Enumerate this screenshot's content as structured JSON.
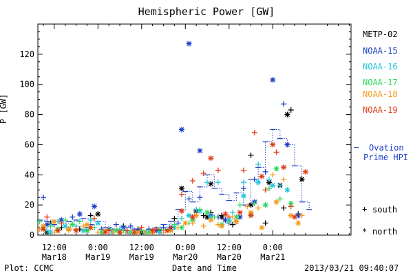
{
  "footer": {
    "left": "Plot: CCMC",
    "center": "Date and Time",
    "right": "2013/03/21 09:40:07"
  },
  "markers": {
    "south_symbol": "+",
    "south_label": "south",
    "north_symbol": "*",
    "north_label": "north",
    "ovation_symbol": "–",
    "ovation_label_1": "Ovation",
    "ovation_label_2": "Prime HPI"
  },
  "chart_data": {
    "type": "scatter",
    "title": "Hemispheric Power [GW]",
    "ylabel": "P [GW]",
    "xlabel": "Date and Time",
    "x_unit": "hours since Mar18 00:00",
    "xlim": [
      7.5,
      93.5
    ],
    "ylim": [
      0,
      140
    ],
    "yticks": [
      0,
      20,
      40,
      60,
      80,
      100,
      120
    ],
    "xticks": [
      {
        "x": 12,
        "line1": "12:00",
        "line2": "Mar18"
      },
      {
        "x": 24,
        "line1": "0:00",
        "line2": "Mar19"
      },
      {
        "x": 36,
        "line1": "12:00",
        "line2": "Mar19"
      },
      {
        "x": 48,
        "line1": "0:00",
        "line2": "Mar20"
      },
      {
        "x": 60,
        "line1": "12:00",
        "line2": "Mar20"
      },
      {
        "x": 72,
        "line1": "0:00",
        "line2": "Mar21"
      }
    ],
    "series": [
      {
        "name": "METP-02",
        "color": "#000000",
        "south": [
          [
            11,
            8
          ],
          [
            14,
            5
          ],
          [
            19,
            4
          ],
          [
            22,
            13
          ],
          [
            27,
            3
          ],
          [
            31,
            6
          ],
          [
            35,
            4
          ],
          [
            40,
            3
          ],
          [
            45,
            11
          ],
          [
            50,
            12
          ],
          [
            53,
            13
          ],
          [
            55,
            15
          ],
          [
            58,
            13
          ],
          [
            61,
            7
          ],
          [
            66,
            53
          ],
          [
            70,
            8
          ],
          [
            75,
            18
          ],
          [
            77,
            83
          ],
          [
            79,
            14
          ]
        ],
        "north": [
          [
            10,
            2
          ],
          [
            16,
            4
          ],
          [
            21,
            3
          ],
          [
            24,
            14
          ],
          [
            30,
            2
          ],
          [
            36,
            2
          ],
          [
            41,
            3
          ],
          [
            44,
            4
          ],
          [
            47,
            31
          ],
          [
            51,
            16
          ],
          [
            54,
            12
          ],
          [
            55,
            34
          ],
          [
            58,
            12
          ],
          [
            62,
            9
          ],
          [
            66,
            20
          ],
          [
            71,
            35
          ],
          [
            74,
            33
          ],
          [
            76,
            80
          ],
          [
            80,
            37
          ]
        ]
      },
      {
        "name": "NOAA-15",
        "color": "#1a3ec8",
        "south": [
          [
            9,
            25
          ],
          [
            12,
            7
          ],
          [
            17,
            12
          ],
          [
            21,
            5
          ],
          [
            25,
            4
          ],
          [
            29,
            7
          ],
          [
            33,
            6
          ],
          [
            38,
            4
          ],
          [
            42,
            5
          ],
          [
            46,
            8
          ],
          [
            49,
            24
          ],
          [
            52,
            25
          ],
          [
            57,
            12
          ],
          [
            60,
            8
          ],
          [
            64,
            31
          ],
          [
            67,
            37
          ],
          [
            70,
            42
          ],
          [
            75,
            87
          ]
        ],
        "north": [
          [
            10,
            7
          ],
          [
            14,
            10
          ],
          [
            19,
            14
          ],
          [
            23,
            19
          ],
          [
            27,
            4
          ],
          [
            31,
            5
          ],
          [
            35,
            3
          ],
          [
            40,
            3
          ],
          [
            44,
            5
          ],
          [
            47,
            70
          ],
          [
            49,
            127
          ],
          [
            52,
            56
          ],
          [
            55,
            13
          ],
          [
            59,
            10
          ],
          [
            63,
            12
          ],
          [
            67,
            22
          ],
          [
            72,
            103
          ],
          [
            76,
            60
          ],
          [
            79,
            13
          ]
        ]
      },
      {
        "name": "NOAA-16",
        "color": "#22c5dd",
        "south": [
          [
            10,
            3
          ],
          [
            13,
            9
          ],
          [
            18,
            6
          ],
          [
            22,
            10
          ],
          [
            26,
            3
          ],
          [
            30,
            4
          ],
          [
            34,
            2
          ],
          [
            39,
            3
          ],
          [
            43,
            4
          ],
          [
            47,
            11
          ],
          [
            51,
            17
          ],
          [
            54,
            35
          ],
          [
            57,
            35
          ],
          [
            61,
            15
          ],
          [
            64,
            35
          ],
          [
            68,
            47
          ],
          [
            71,
            37
          ],
          [
            74,
            33
          ]
        ],
        "north": [
          [
            11,
            2
          ],
          [
            15,
            6
          ],
          [
            20,
            3
          ],
          [
            24,
            8
          ],
          [
            28,
            2
          ],
          [
            32,
            2
          ],
          [
            37,
            2
          ],
          [
            41,
            2
          ],
          [
            45,
            5
          ],
          [
            49,
            13
          ],
          [
            52,
            16
          ],
          [
            55,
            12
          ],
          [
            60,
            10
          ],
          [
            64,
            26
          ],
          [
            68,
            35
          ],
          [
            72,
            33
          ],
          [
            76,
            30
          ]
        ]
      },
      {
        "name": "NOAA-17",
        "color": "#2ed85a",
        "south": [
          [
            8,
            9
          ],
          [
            11,
            6
          ],
          [
            15,
            10
          ],
          [
            19,
            9
          ],
          [
            23,
            5
          ],
          [
            27,
            4
          ],
          [
            31,
            3
          ],
          [
            36,
            3
          ],
          [
            41,
            4
          ],
          [
            45,
            7
          ],
          [
            49,
            8
          ],
          [
            52,
            17
          ],
          [
            56,
            12
          ],
          [
            60,
            9
          ],
          [
            63,
            20
          ],
          [
            67,
            21
          ],
          [
            71,
            31
          ],
          [
            74,
            24
          ]
        ],
        "north": [
          [
            9,
            5
          ],
          [
            13,
            4
          ],
          [
            17,
            7
          ],
          [
            21,
            3
          ],
          [
            25,
            2
          ],
          [
            29,
            3
          ],
          [
            33,
            2
          ],
          [
            38,
            2
          ],
          [
            43,
            3
          ],
          [
            47,
            5
          ],
          [
            50,
            10
          ],
          [
            54,
            15
          ],
          [
            58,
            7
          ],
          [
            62,
            12
          ],
          [
            66,
            14
          ],
          [
            70,
            20
          ],
          [
            73,
            44
          ],
          [
            77,
            21
          ]
        ]
      },
      {
        "name": "NOAA-18",
        "color": "#f59a1e",
        "south": [
          [
            8,
            4
          ],
          [
            12,
            2
          ],
          [
            16,
            3
          ],
          [
            20,
            6
          ],
          [
            24,
            2
          ],
          [
            28,
            2
          ],
          [
            32,
            2
          ],
          [
            37,
            2
          ],
          [
            42,
            2
          ],
          [
            46,
            5
          ],
          [
            50,
            8
          ],
          [
            53,
            6
          ],
          [
            57,
            7
          ],
          [
            61,
            12
          ],
          [
            65,
            19
          ],
          [
            68,
            18
          ],
          [
            72,
            40
          ],
          [
            75,
            37
          ],
          [
            80,
            13
          ]
        ],
        "north": [
          [
            9,
            6
          ],
          [
            12,
            9
          ],
          [
            16,
            4
          ],
          [
            21,
            7
          ],
          [
            26,
            3
          ],
          [
            30,
            2
          ],
          [
            35,
            2
          ],
          [
            39,
            2
          ],
          [
            44,
            3
          ],
          [
            48,
            8
          ],
          [
            51,
            13
          ],
          [
            55,
            10
          ],
          [
            58,
            6
          ],
          [
            62,
            9
          ],
          [
            66,
            15
          ],
          [
            69,
            5
          ],
          [
            73,
            22
          ],
          [
            77,
            13
          ],
          [
            79,
            8
          ]
        ]
      },
      {
        "name": "NOAA-19",
        "color": "#e03c14",
        "south": [
          [
            10,
            12
          ],
          [
            14,
            8
          ],
          [
            18,
            4
          ],
          [
            23,
            11
          ],
          [
            27,
            3
          ],
          [
            32,
            3
          ],
          [
            36,
            5
          ],
          [
            40,
            4
          ],
          [
            44,
            5
          ],
          [
            47,
            27
          ],
          [
            50,
            36
          ],
          [
            53,
            41
          ],
          [
            57,
            43
          ],
          [
            60,
            12
          ],
          [
            64,
            43
          ],
          [
            67,
            68
          ],
          [
            70,
            30
          ],
          [
            73,
            55
          ],
          [
            77,
            19
          ]
        ],
        "north": [
          [
            9,
            4
          ],
          [
            13,
            3
          ],
          [
            18,
            3
          ],
          [
            22,
            5
          ],
          [
            26,
            2
          ],
          [
            30,
            2
          ],
          [
            34,
            2
          ],
          [
            39,
            3
          ],
          [
            43,
            3
          ],
          [
            47,
            16
          ],
          [
            50,
            12
          ],
          [
            55,
            51
          ],
          [
            59,
            14
          ],
          [
            63,
            15
          ],
          [
            66,
            13
          ],
          [
            69,
            39
          ],
          [
            72,
            60
          ],
          [
            75,
            45
          ],
          [
            78,
            12
          ],
          [
            81,
            42
          ]
        ]
      }
    ],
    "ovation": {
      "name": "Ovation Prime HPI",
      "color": "#1a3ec8",
      "points": [
        [
          8,
          10
        ],
        [
          10,
          9
        ],
        [
          12,
          9
        ],
        [
          14,
          8
        ],
        [
          16,
          9
        ],
        [
          18,
          10
        ],
        [
          20,
          11
        ],
        [
          22,
          7
        ],
        [
          24,
          9
        ],
        [
          26,
          5
        ],
        [
          28,
          4
        ],
        [
          30,
          4
        ],
        [
          32,
          5
        ],
        [
          34,
          4
        ],
        [
          36,
          3
        ],
        [
          38,
          4
        ],
        [
          40,
          5
        ],
        [
          42,
          7
        ],
        [
          44,
          9
        ],
        [
          46,
          17
        ],
        [
          48,
          29
        ],
        [
          50,
          22
        ],
        [
          52,
          32
        ],
        [
          54,
          40
        ],
        [
          56,
          31
        ],
        [
          58,
          27
        ],
        [
          60,
          23
        ],
        [
          62,
          28
        ],
        [
          64,
          20
        ],
        [
          66,
          37
        ],
        [
          68,
          45
        ],
        [
          70,
          62
        ],
        [
          72,
          70
        ],
        [
          74,
          64
        ],
        [
          76,
          60
        ],
        [
          78,
          46
        ],
        [
          80,
          22
        ],
        [
          82,
          17
        ]
      ]
    }
  }
}
